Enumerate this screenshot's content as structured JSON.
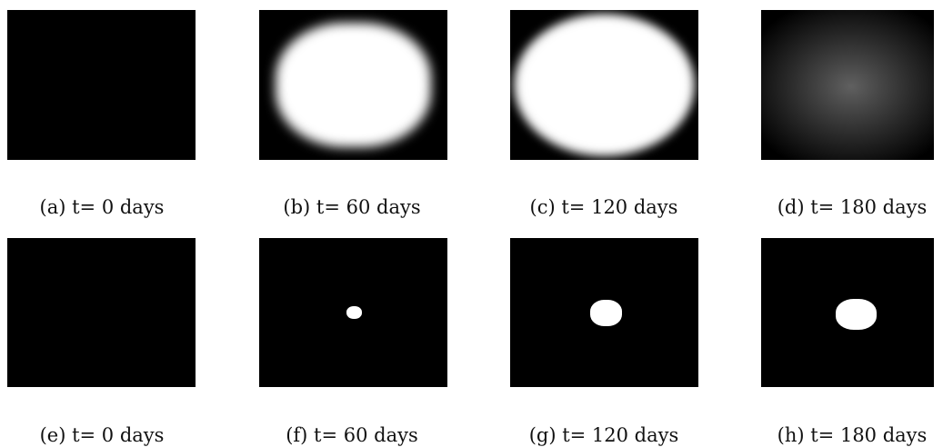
{
  "figure": {
    "panels": [
      {
        "id": "a",
        "caption": "(a) t= 0 days"
      },
      {
        "id": "b",
        "caption": "(b) t= 60 days"
      },
      {
        "id": "c",
        "caption": "(c) t= 120 days"
      },
      {
        "id": "d",
        "caption": "(d) t= 180 days"
      },
      {
        "id": "e",
        "caption": "(e) t= 0 days"
      },
      {
        "id": "f",
        "caption": "(f) t= 60 days"
      },
      {
        "id": "g",
        "caption": "(g) t= 120 days"
      },
      {
        "id": "h",
        "caption": "(h) t= 180 days"
      }
    ]
  }
}
